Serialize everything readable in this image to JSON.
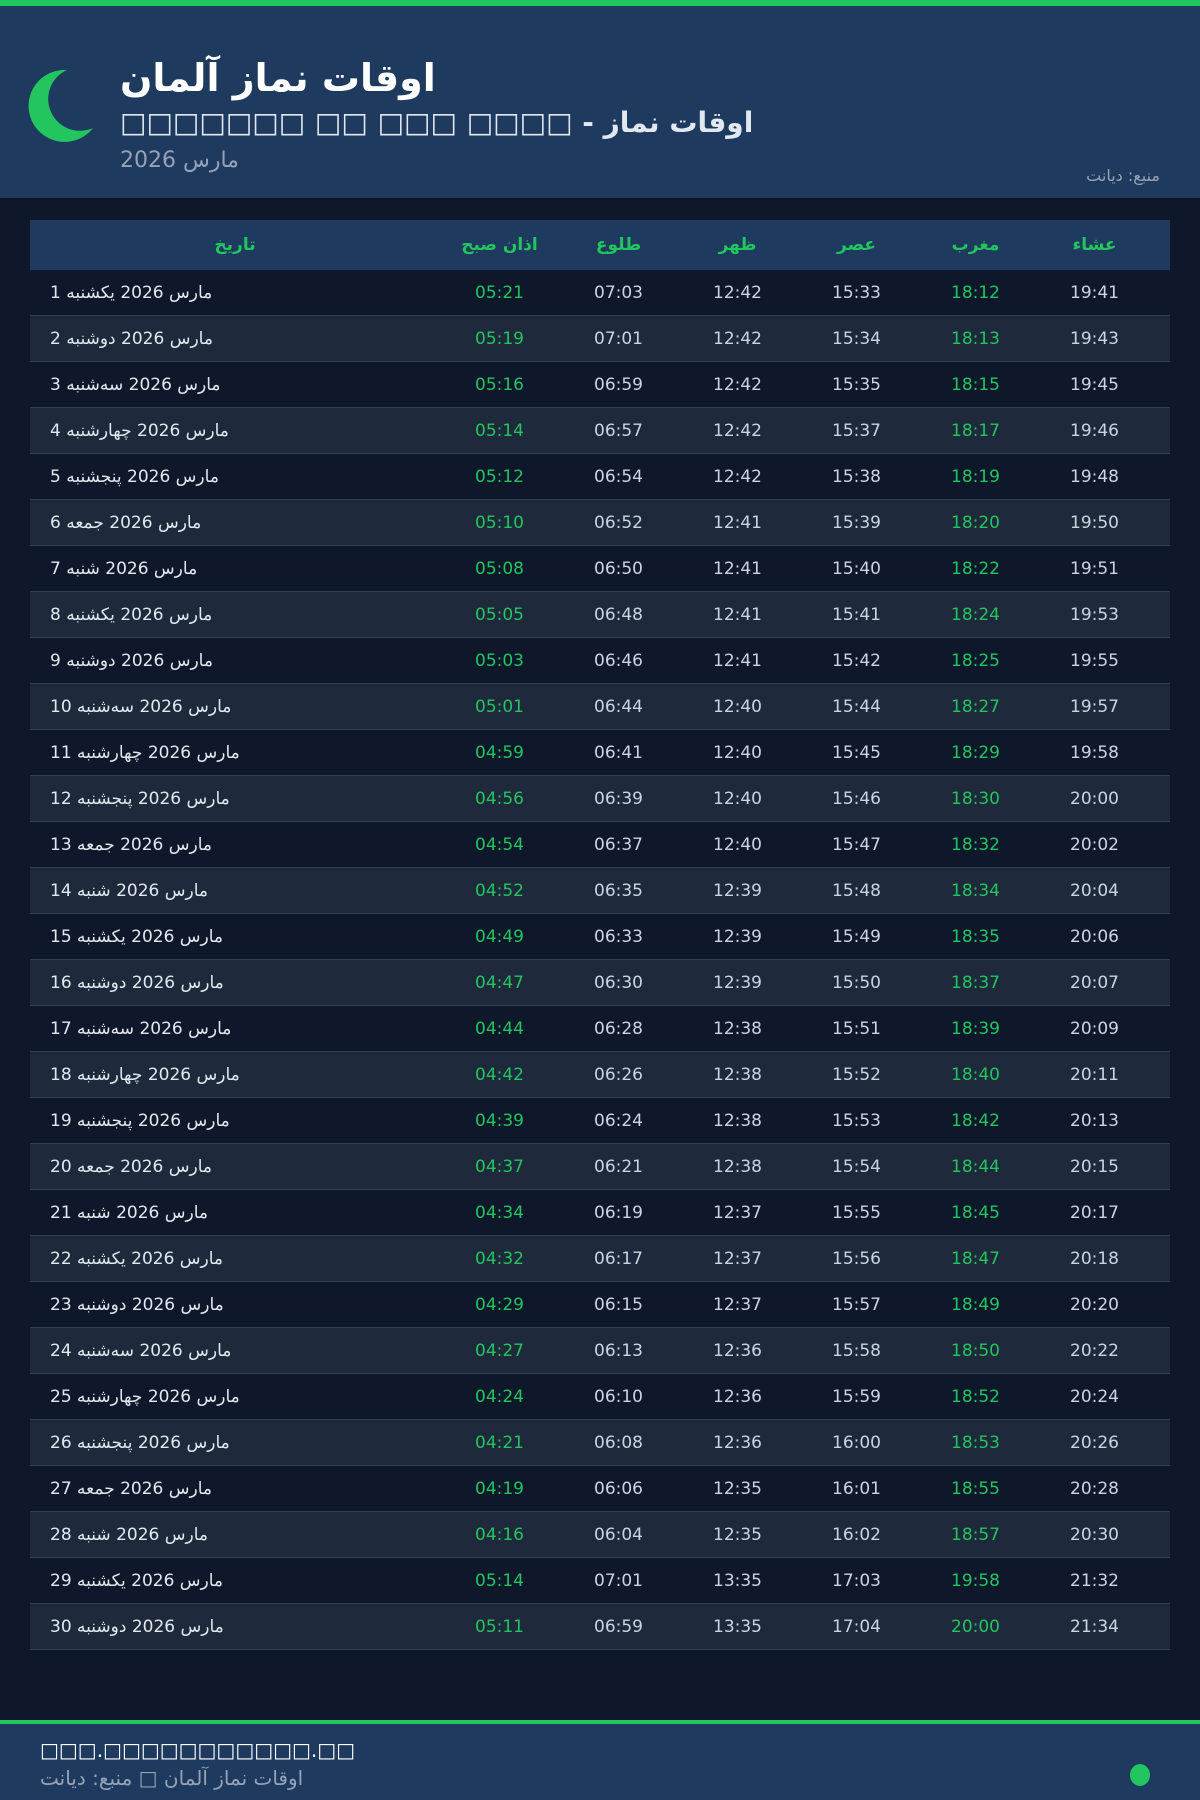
{
  "header": {
    "title": "اوقات نماز آلمان",
    "subtitle": "□□□□□□□ □□ □□□ □□□□ - اوقات نماز",
    "month": "مارس 2026",
    "source": "منبع: دیانت"
  },
  "colors": {
    "accent": "#22c55e",
    "header_bg": "#1e3a5f",
    "page_bg": "#0f172a"
  },
  "table": {
    "columns": [
      "تاریخ",
      "اذان صبح",
      "طلوع",
      "ظهر",
      "عصر",
      "مغرب",
      "عشاء"
    ],
    "rows": [
      [
        "1 مارس 2026 یکشنبه",
        "05:21",
        "07:03",
        "12:42",
        "15:33",
        "18:12",
        "19:41"
      ],
      [
        "2 مارس 2026 دوشنبه",
        "05:19",
        "07:01",
        "12:42",
        "15:34",
        "18:13",
        "19:43"
      ],
      [
        "3 مارس 2026 سه‌شنبه",
        "05:16",
        "06:59",
        "12:42",
        "15:35",
        "18:15",
        "19:45"
      ],
      [
        "4 مارس 2026 چهارشنبه",
        "05:14",
        "06:57",
        "12:42",
        "15:37",
        "18:17",
        "19:46"
      ],
      [
        "5 مارس 2026 پنجشنبه",
        "05:12",
        "06:54",
        "12:42",
        "15:38",
        "18:19",
        "19:48"
      ],
      [
        "6 مارس 2026 جمعه",
        "05:10",
        "06:52",
        "12:41",
        "15:39",
        "18:20",
        "19:50"
      ],
      [
        "7 مارس 2026 شنبه",
        "05:08",
        "06:50",
        "12:41",
        "15:40",
        "18:22",
        "19:51"
      ],
      [
        "8 مارس 2026 یکشنبه",
        "05:05",
        "06:48",
        "12:41",
        "15:41",
        "18:24",
        "19:53"
      ],
      [
        "9 مارس 2026 دوشنبه",
        "05:03",
        "06:46",
        "12:41",
        "15:42",
        "18:25",
        "19:55"
      ],
      [
        "10 مارس 2026 سه‌شنبه",
        "05:01",
        "06:44",
        "12:40",
        "15:44",
        "18:27",
        "19:57"
      ],
      [
        "11 مارس 2026 چهارشنبه",
        "04:59",
        "06:41",
        "12:40",
        "15:45",
        "18:29",
        "19:58"
      ],
      [
        "12 مارس 2026 پنجشنبه",
        "04:56",
        "06:39",
        "12:40",
        "15:46",
        "18:30",
        "20:00"
      ],
      [
        "13 مارس 2026 جمعه",
        "04:54",
        "06:37",
        "12:40",
        "15:47",
        "18:32",
        "20:02"
      ],
      [
        "14 مارس 2026 شنبه",
        "04:52",
        "06:35",
        "12:39",
        "15:48",
        "18:34",
        "20:04"
      ],
      [
        "15 مارس 2026 یکشنبه",
        "04:49",
        "06:33",
        "12:39",
        "15:49",
        "18:35",
        "20:06"
      ],
      [
        "16 مارس 2026 دوشنبه",
        "04:47",
        "06:30",
        "12:39",
        "15:50",
        "18:37",
        "20:07"
      ],
      [
        "17 مارس 2026 سه‌شنبه",
        "04:44",
        "06:28",
        "12:38",
        "15:51",
        "18:39",
        "20:09"
      ],
      [
        "18 مارس 2026 چهارشنبه",
        "04:42",
        "06:26",
        "12:38",
        "15:52",
        "18:40",
        "20:11"
      ],
      [
        "19 مارس 2026 پنجشنبه",
        "04:39",
        "06:24",
        "12:38",
        "15:53",
        "18:42",
        "20:13"
      ],
      [
        "20 مارس 2026 جمعه",
        "04:37",
        "06:21",
        "12:38",
        "15:54",
        "18:44",
        "20:15"
      ],
      [
        "21 مارس 2026 شنبه",
        "04:34",
        "06:19",
        "12:37",
        "15:55",
        "18:45",
        "20:17"
      ],
      [
        "22 مارس 2026 یکشنبه",
        "04:32",
        "06:17",
        "12:37",
        "15:56",
        "18:47",
        "20:18"
      ],
      [
        "23 مارس 2026 دوشنبه",
        "04:29",
        "06:15",
        "12:37",
        "15:57",
        "18:49",
        "20:20"
      ],
      [
        "24 مارس 2026 سه‌شنبه",
        "04:27",
        "06:13",
        "12:36",
        "15:58",
        "18:50",
        "20:22"
      ],
      [
        "25 مارس 2026 چهارشنبه",
        "04:24",
        "06:10",
        "12:36",
        "15:59",
        "18:52",
        "20:24"
      ],
      [
        "26 مارس 2026 پنجشنبه",
        "04:21",
        "06:08",
        "12:36",
        "16:00",
        "18:53",
        "20:26"
      ],
      [
        "27 مارس 2026 جمعه",
        "04:19",
        "06:06",
        "12:35",
        "16:01",
        "18:55",
        "20:28"
      ],
      [
        "28 مارس 2026 شنبه",
        "04:16",
        "06:04",
        "12:35",
        "16:02",
        "18:57",
        "20:30"
      ],
      [
        "29 مارس 2026 یکشنبه",
        "05:14",
        "07:01",
        "13:35",
        "17:03",
        "19:58",
        "21:32"
      ],
      [
        "30 مارس 2026 دوشنبه",
        "05:11",
        "06:59",
        "13:35",
        "17:04",
        "20:00",
        "21:34"
      ]
    ]
  },
  "footer": {
    "url": "□□□.□□□□□□□□□□□.□□",
    "text": "اوقات نماز آلمان □ منبع: دیانت"
  }
}
